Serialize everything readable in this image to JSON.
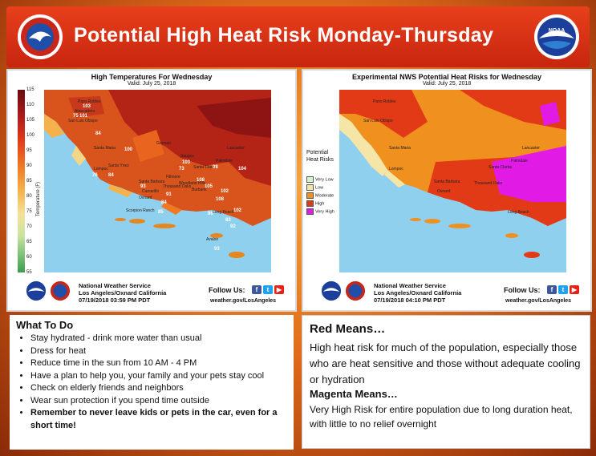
{
  "header": {
    "title": "Potential High Heat Risk Monday-Thursday",
    "logo_left": "nws-seal",
    "logo_right": "noaa-logo",
    "noaa_text": "NOAA",
    "colors": {
      "banner": "#d8321a",
      "background": "#e8741f"
    }
  },
  "left_map": {
    "title": "High Temperatures For Wednesday",
    "valid": "Valid: July 25, 2018",
    "colorbar_label": "Temperature (F)",
    "colorbar_ticks": [
      "115",
      "110",
      "105",
      "100",
      "95",
      "90",
      "85",
      "80",
      "75",
      "70",
      "65",
      "60",
      "55"
    ],
    "cities": [
      "Paso Robles",
      "Atascadero",
      "San Luis Obispo",
      "Santa Maria",
      "Lompoc",
      "Santa Ynez",
      "Santa Barbara",
      "Fillmore",
      "Saugus",
      "Palmdale",
      "Lancaster",
      "Gorman",
      "Santa Clarita",
      "Woodland Hills",
      "Thousand Oaks",
      "Camarillo",
      "Oxnard",
      "Burbank",
      "Long Beach",
      "Scorpion Ranch",
      "Avalon"
    ],
    "values": [
      "103",
      "101",
      "75",
      "84",
      "84",
      "76",
      "100",
      "93",
      "103",
      "73",
      "98",
      "104",
      "108",
      "105",
      "102",
      "108",
      "91",
      "96",
      "102",
      "85",
      "84",
      "83",
      "93",
      "92"
    ],
    "footer": {
      "org": "National Weather Service",
      "office": "Los Angeles/Oxnard California",
      "issued": "07/19/2018 03:59 PM PDT",
      "follow": "Follow Us:",
      "site": "weather.gov/LosAngeles"
    }
  },
  "right_map": {
    "title": "Experimental NWS Potential Heat Risks for Wednesday",
    "valid": "Valid: July 25, 2018",
    "legend_title": "Potential Heat Risks",
    "legend": [
      {
        "label": "Very Low",
        "color": "#d9f2d0"
      },
      {
        "label": "Low",
        "color": "#f5e6a8"
      },
      {
        "label": "Moderate",
        "color": "#f0901e"
      },
      {
        "label": "High",
        "color": "#e23a17"
      },
      {
        "label": "Very High",
        "color": "#e11ae6"
      }
    ],
    "cities": [
      "Paso Robles",
      "San Luis Obispo",
      "Santa Maria",
      "Lompoc",
      "Santa Barbara",
      "Lancaster",
      "Palmdale",
      "Santa Clarita",
      "Thousand Oaks",
      "Oxnard",
      "Long Beach"
    ],
    "footer": {
      "org": "National Weather Service",
      "office": "Los Angeles/Oxnard California",
      "issued": "07/19/2018 04:10 PM PDT",
      "follow": "Follow Us:",
      "site": "weather.gov/LosAngeles"
    }
  },
  "what_to_do": {
    "title": "What To Do",
    "items": [
      "Stay hydrated - drink more water than usual",
      "Dress for heat",
      "Reduce time in the sun from 10 AM - 4 PM",
      "Have a plan to help you, your family and your pets stay cool",
      "Check on elderly friends and neighbors",
      "Wear sun protection if you spend time outside"
    ],
    "bold_item": "Remember to never leave kids or pets in the car, even for a short time!"
  },
  "meanings": {
    "red_heading": "Red Means…",
    "red_text": "High heat risk for much of the population, especially those who are heat sensitive and those without adequate cooling or hydration",
    "magenta_heading": "Magenta Means…",
    "magenta_text": "Very High Risk for entire population due to long duration heat, with little to no relief overnight"
  },
  "social_icons": [
    "facebook-icon",
    "twitter-icon",
    "youtube-icon"
  ]
}
